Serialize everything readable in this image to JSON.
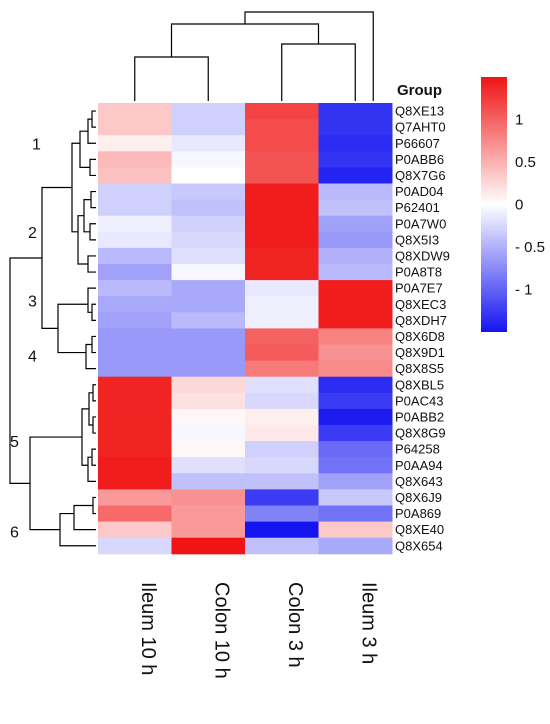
{
  "chart_data": {
    "type": "heatmap",
    "legend_title": "Group",
    "columns": [
      "Ileum 10 h",
      "Colon 10 h",
      "Colon 3 h",
      "Ileum 3 h"
    ],
    "rows": [
      "Q8XE13",
      "Q7AHT0",
      "P66607",
      "P0ABB6",
      "Q8X7G6",
      "P0AD04",
      "P62401",
      "P0A7W0",
      "Q8X5I3",
      "Q8XDW9",
      "P0A8T8",
      "P0A7E7",
      "Q8XEC3",
      "Q8XDH7",
      "Q8X6D8",
      "Q8X9D1",
      "Q8X8S5",
      "Q8XBL5",
      "P0AC43",
      "P0ABB2",
      "Q8X8G9",
      "P64258",
      "P0AA94",
      "Q8X643",
      "Q8X6J9",
      "P0A869",
      "Q8XE40",
      "Q8X654"
    ],
    "values": [
      [
        0.35,
        -0.3,
        1.2,
        -1.3
      ],
      [
        0.35,
        -0.3,
        1.15,
        -1.3
      ],
      [
        0.1,
        -0.15,
        1.15,
        -1.35
      ],
      [
        0.45,
        -0.05,
        1.1,
        -1.3
      ],
      [
        0.4,
        0.0,
        1.1,
        -1.4
      ],
      [
        -0.3,
        -0.35,
        1.45,
        -0.45
      ],
      [
        -0.3,
        -0.4,
        1.45,
        -0.4
      ],
      [
        -0.1,
        -0.3,
        1.45,
        -0.6
      ],
      [
        -0.15,
        -0.25,
        1.45,
        -0.65
      ],
      [
        -0.45,
        -0.2,
        1.4,
        -0.5
      ],
      [
        -0.6,
        -0.05,
        1.4,
        -0.45
      ],
      [
        -0.45,
        -0.55,
        -0.15,
        1.45
      ],
      [
        -0.55,
        -0.55,
        -0.1,
        1.45
      ],
      [
        -0.6,
        -0.45,
        -0.1,
        1.45
      ],
      [
        -0.65,
        -0.65,
        1.0,
        0.8
      ],
      [
        -0.65,
        -0.65,
        1.05,
        0.7
      ],
      [
        -0.65,
        -0.65,
        0.85,
        0.75
      ],
      [
        1.4,
        0.25,
        -0.2,
        -1.35
      ],
      [
        1.4,
        0.2,
        -0.25,
        -1.25
      ],
      [
        1.4,
        0.05,
        0.1,
        -1.45
      ],
      [
        1.4,
        -0.05,
        0.15,
        -1.25
      ],
      [
        1.4,
        0.05,
        -0.3,
        -0.95
      ],
      [
        1.45,
        -0.2,
        -0.25,
        -0.9
      ],
      [
        1.45,
        -0.4,
        -0.4,
        -0.6
      ],
      [
        0.65,
        0.7,
        -1.25,
        -0.35
      ],
      [
        0.95,
        0.65,
        -0.8,
        -0.9
      ],
      [
        0.35,
        0.65,
        -1.5,
        0.35
      ],
      [
        -0.25,
        1.5,
        -0.4,
        -0.55
      ]
    ],
    "clusters": [
      {
        "label": "1",
        "rows": [
          0,
          4
        ]
      },
      {
        "label": "2",
        "rows": [
          5,
          10
        ]
      },
      {
        "label": "3",
        "rows": [
          11,
          13
        ]
      },
      {
        "label": "4",
        "rows": [
          14,
          16
        ]
      },
      {
        "label": "5",
        "rows": [
          17,
          23
        ]
      },
      {
        "label": "6",
        "rows": [
          24,
          27
        ]
      }
    ],
    "colorbar": {
      "range": [
        -1.5,
        1.5
      ],
      "ticks": [
        1,
        0.5,
        0,
        -0.5,
        -1
      ],
      "tick_labels": [
        "1",
        "0.5",
        "0",
        "- 0.5",
        "- 1"
      ],
      "colors": {
        "low": "#1414f0",
        "mid": "#ffffff",
        "high": "#f01414"
      }
    }
  }
}
